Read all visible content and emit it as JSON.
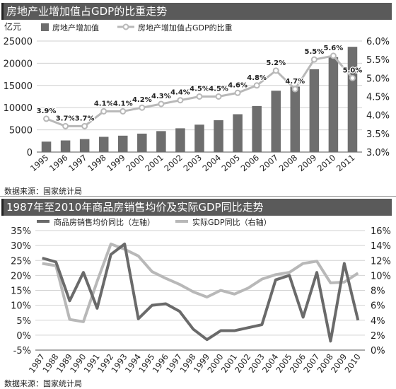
{
  "chart_data": [
    {
      "type": "bar+line",
      "title": "房地产业增加值占GDP的比重走势",
      "y_left_unit": "亿元",
      "legend": [
        "房地产增加值",
        "房地产增加值占GDP的比重"
      ],
      "categories": [
        "1995",
        "1996",
        "1997",
        "1998",
        "1999",
        "2000",
        "2001",
        "2002",
        "2003",
        "2004",
        "2005",
        "2006",
        "2007",
        "2008",
        "2009",
        "2010",
        "2011"
      ],
      "bar_series": {
        "name": "房地产增加值",
        "values": [
          2350,
          2620,
          2920,
          3430,
          3690,
          4150,
          4720,
          5350,
          6170,
          7170,
          8520,
          10370,
          13810,
          14740,
          18650,
          21370,
          23700
        ]
      },
      "line_series": {
        "name": "房地产增加值占GDP的比重",
        "values": [
          3.9,
          3.7,
          3.7,
          4.1,
          4.1,
          4.2,
          4.3,
          4.4,
          4.5,
          4.5,
          4.6,
          4.8,
          5.2,
          4.7,
          5.5,
          5.6,
          5.0
        ],
        "labels": [
          "3.9%",
          "3.7%",
          "3.7%",
          "4.1%",
          "4.1%",
          "4.2%",
          "4.3%",
          "4.4%",
          "4.5%",
          "4.5%",
          "4.6%",
          "4.8%",
          "5.2%",
          "4.7%",
          "5.5%",
          "5.6%",
          "5.0%"
        ]
      },
      "y_left_ticks": [
        "0",
        "5000",
        "10000",
        "15000",
        "20000",
        "25000"
      ],
      "y_left_range": [
        0,
        25000
      ],
      "y_right_ticks": [
        "3.0%",
        "3.5%",
        "4.0%",
        "4.5%",
        "5.0%",
        "5.5%",
        "6.0%"
      ],
      "y_right_range": [
        3.0,
        6.0
      ],
      "grid": true,
      "legend_position": "top",
      "source": "数据来源：国家统计局"
    },
    {
      "type": "line",
      "title": "1987年至2010年商品房销售均价及实际GDP同比走势",
      "legend": [
        "商品房销售均价同比（左轴）",
        "实际GDP同比（右轴）"
      ],
      "categories": [
        "1987",
        "1988",
        "1989",
        "1990",
        "1991",
        "1992",
        "1993",
        "1994",
        "1995",
        "1996",
        "1997",
        "1998",
        "1999",
        "2000",
        "2001",
        "2002",
        "2003",
        "2004",
        "2005",
        "2006",
        "2007",
        "2008",
        "2009",
        "2010"
      ],
      "series": [
        {
          "name": "商品房销售均价同比（左轴）",
          "axis": "left",
          "values": [
            25.8,
            24.5,
            11.5,
            21.0,
            9.0,
            27.0,
            30.5,
            5.5,
            10.0,
            10.5,
            8.0,
            2.0,
            -1.5,
            1.5,
            1.5,
            2.5,
            3.5,
            18.5,
            20.0,
            6.0,
            21.0,
            -2.0,
            24.0,
            5.0
          ]
        },
        {
          "name": "实际GDP同比（右轴）",
          "axis": "right",
          "values": [
            11.6,
            11.3,
            4.1,
            3.8,
            9.2,
            14.2,
            13.5,
            12.6,
            10.5,
            9.6,
            8.8,
            7.8,
            7.1,
            8.0,
            7.5,
            8.3,
            9.5,
            10.1,
            10.4,
            11.6,
            11.9,
            9.0,
            9.1,
            10.3
          ]
        }
      ],
      "y_left_ticks": [
        "-5%",
        "0%",
        "5%",
        "10%",
        "15%",
        "20%",
        "25%",
        "30%",
        "35%"
      ],
      "y_left_range": [
        -5,
        35
      ],
      "y_right_ticks": [
        "0%",
        "2%",
        "4%",
        "6%",
        "8%",
        "10%",
        "12%",
        "14%",
        "16%"
      ],
      "y_right_range": [
        0,
        16
      ],
      "grid": true,
      "legend_position": "top",
      "source": "数据来源：国家统计局"
    }
  ],
  "colors": {
    "bar": "#6e6e6e",
    "line1": "#b8b8b8",
    "dark_line": "#6a6a6a",
    "light_line": "#b8b8b8",
    "title_bg": "#5a5a5a"
  }
}
